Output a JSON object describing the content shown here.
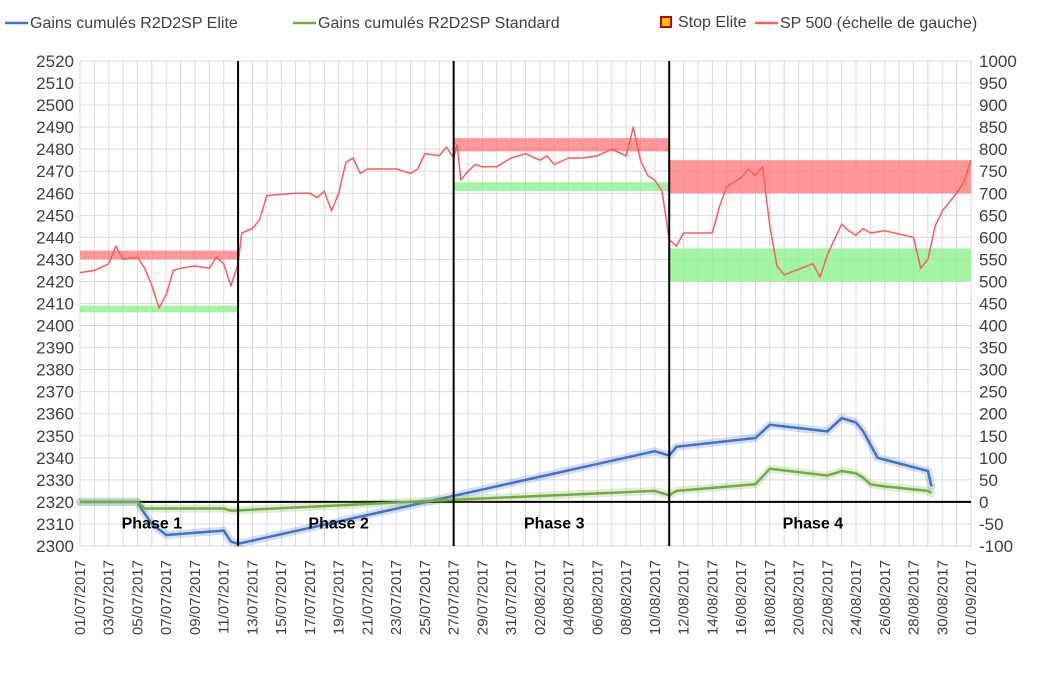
{
  "chart_data": {
    "type": "line",
    "x_axis": {
      "min_date": "01/07/2017",
      "max_date": "01/09/2017",
      "tick_labels": [
        "01/07/2017",
        "03/07/2017",
        "05/07/2017",
        "07/07/2017",
        "09/07/2017",
        "11/07/2017",
        "13/07/2017",
        "15/07/2017",
        "17/07/2017",
        "19/07/2017",
        "21/07/2017",
        "23/07/2017",
        "25/07/2017",
        "27/07/2017",
        "29/07/2017",
        "31/07/2017",
        "02/08/2017",
        "04/08/2017",
        "06/08/2017",
        "08/08/2017",
        "10/08/2017",
        "12/08/2017",
        "14/08/2017",
        "16/08/2017",
        "18/08/2017",
        "20/08/2017",
        "22/08/2017",
        "24/08/2017",
        "26/08/2017",
        "28/08/2017",
        "30/08/2017",
        "01/09/2017"
      ]
    },
    "y_left": {
      "min": 2300,
      "max": 2520,
      "step": 10,
      "tick_labels": [
        "2300",
        "2310",
        "2320",
        "2330",
        "2340",
        "2350",
        "2360",
        "2370",
        "2380",
        "2390",
        "2400",
        "2410",
        "2420",
        "2430",
        "2440",
        "2450",
        "2460",
        "2470",
        "2480",
        "2490",
        "2500",
        "2510",
        "2520"
      ]
    },
    "y_right": {
      "min": -100,
      "max": 1000,
      "step": 50,
      "tick_labels": [
        "-100",
        "-50",
        "0",
        "50",
        "100",
        "150",
        "200",
        "250",
        "300",
        "350",
        "400",
        "450",
        "500",
        "550",
        "600",
        "650",
        "700",
        "750",
        "800",
        "850",
        "900",
        "950",
        "1000"
      ]
    },
    "grid": true,
    "legend_position": "top",
    "legend": [
      {
        "label": "Gains cumulés R2D2SP Elite",
        "color": "#4472c4",
        "kind": "line"
      },
      {
        "label": "Gains cumulés R2D2SP Standard",
        "color": "#70ad47",
        "kind": "line"
      },
      {
        "label": "Stop Elite",
        "color": "#ffc000",
        "kind": "marker"
      },
      {
        "label": "SP 500 (échelle de gauche)",
        "color": "#ff5b5b",
        "kind": "line"
      }
    ],
    "phase_dividers": [
      "12/07/2017",
      "27/07/2017",
      "11/08/2017"
    ],
    "phases": [
      {
        "label": "Phase 1",
        "center_date": "06/07/2017"
      },
      {
        "label": "Phase 2",
        "center_date": "19/07/2017"
      },
      {
        "label": "Phase 3",
        "center_date": "03/08/2017"
      },
      {
        "label": "Phase 4",
        "center_date": "21/08/2017"
      }
    ],
    "bands": [
      {
        "from_date": "01/07/2017",
        "to_date": "12/07/2017",
        "y_low": 2430,
        "y_high": 2434,
        "color": "red"
      },
      {
        "from_date": "01/07/2017",
        "to_date": "12/07/2017",
        "y_low": 2406,
        "y_high": 2409,
        "color": "green"
      },
      {
        "from_date": "27/07/2017",
        "to_date": "11/08/2017",
        "y_low": 2479,
        "y_high": 2485,
        "color": "red"
      },
      {
        "from_date": "27/07/2017",
        "to_date": "11/08/2017",
        "y_low": 2461,
        "y_high": 2465,
        "color": "green"
      },
      {
        "from_date": "11/08/2017",
        "to_date": "01/09/2017",
        "y_low": 2460,
        "y_high": 2475,
        "color": "red"
      },
      {
        "from_date": "11/08/2017",
        "to_date": "01/09/2017",
        "y_low": 2420,
        "y_high": 2435,
        "color": "green"
      }
    ],
    "series": [
      {
        "name": "SP 500 (échelle de gauche)",
        "axis": "left",
        "color": "#ff5b5b",
        "points": [
          [
            "01/07/2017",
            2424
          ],
          [
            "02/07/2017",
            2425
          ],
          [
            "03/07/2017",
            2428
          ],
          [
            "03/07/2017 12:00",
            2436
          ],
          [
            "04/07/2017",
            2430
          ],
          [
            "05/07/2017",
            2431
          ],
          [
            "05/07/2017 12:00",
            2426
          ],
          [
            "06/07/2017",
            2418
          ],
          [
            "06/07/2017 12:00",
            2408
          ],
          [
            "07/07/2017",
            2414
          ],
          [
            "07/07/2017 12:00",
            2425
          ],
          [
            "08/07/2017",
            2426
          ],
          [
            "09/07/2017",
            2427
          ],
          [
            "10/07/2017",
            2426
          ],
          [
            "10/07/2017 12:00",
            2431
          ],
          [
            "11/07/2017",
            2428
          ],
          [
            "11/07/2017 12:00",
            2418
          ],
          [
            "12/07/2017",
            2428
          ],
          [
            "12/07/2017 06:00",
            2442
          ],
          [
            "13/07/2017",
            2444
          ],
          [
            "13/07/2017 12:00",
            2448
          ],
          [
            "14/07/2017",
            2459
          ],
          [
            "16/07/2017",
            2460
          ],
          [
            "17/07/2017",
            2460
          ],
          [
            "17/07/2017 12:00",
            2458
          ],
          [
            "18/07/2017",
            2461
          ],
          [
            "18/07/2017 12:00",
            2452
          ],
          [
            "19/07/2017",
            2460
          ],
          [
            "19/07/2017 12:00",
            2474
          ],
          [
            "20/07/2017",
            2476
          ],
          [
            "20/07/2017 12:00",
            2469
          ],
          [
            "21/07/2017",
            2471
          ],
          [
            "22/07/2017",
            2471
          ],
          [
            "23/07/2017",
            2471
          ],
          [
            "24/07/2017",
            2469
          ],
          [
            "24/07/2017 12:00",
            2471
          ],
          [
            "25/07/2017",
            2478
          ],
          [
            "26/07/2017",
            2477
          ],
          [
            "26/07/2017 12:00",
            2481
          ],
          [
            "27/07/2017",
            2476
          ],
          [
            "27/07/2017 06:00",
            2482
          ],
          [
            "27/07/2017 12:00",
            2466
          ],
          [
            "28/07/2017",
            2470
          ],
          [
            "28/07/2017 12:00",
            2473
          ],
          [
            "29/07/2017",
            2472
          ],
          [
            "30/07/2017",
            2472
          ],
          [
            "31/07/2017",
            2476
          ],
          [
            "01/08/2017",
            2478
          ],
          [
            "02/08/2017",
            2475
          ],
          [
            "02/08/2017 12:00",
            2477
          ],
          [
            "03/08/2017",
            2473
          ],
          [
            "04/08/2017",
            2476
          ],
          [
            "05/08/2017",
            2476
          ],
          [
            "06/08/2017",
            2477
          ],
          [
            "07/08/2017",
            2480
          ],
          [
            "08/08/2017",
            2477
          ],
          [
            "08/08/2017 12:00",
            2490
          ],
          [
            "09/08/2017",
            2475
          ],
          [
            "09/08/2017 12:00",
            2468
          ],
          [
            "10/08/2017",
            2466
          ],
          [
            "10/08/2017 12:00",
            2461
          ],
          [
            "11/08/2017",
            2439
          ],
          [
            "11/08/2017 12:00",
            2436
          ],
          [
            "12/08/2017",
            2442
          ],
          [
            "14/08/2017",
            2442
          ],
          [
            "14/08/2017 12:00",
            2454
          ],
          [
            "15/08/2017",
            2463
          ],
          [
            "16/08/2017",
            2467
          ],
          [
            "16/08/2017 12:00",
            2471
          ],
          [
            "17/08/2017",
            2468
          ],
          [
            "17/08/2017 12:00",
            2472
          ],
          [
            "18/08/2017",
            2445
          ],
          [
            "18/08/2017 12:00",
            2427
          ],
          [
            "19/08/2017",
            2423
          ],
          [
            "21/08/2017",
            2428
          ],
          [
            "21/08/2017 12:00",
            2422
          ],
          [
            "22/08/2017",
            2432
          ],
          [
            "23/08/2017",
            2446
          ],
          [
            "23/08/2017 12:00",
            2443
          ],
          [
            "24/08/2017",
            2441
          ],
          [
            "24/08/2017 12:00",
            2444
          ],
          [
            "25/08/2017",
            2442
          ],
          [
            "26/08/2017",
            2443
          ],
          [
            "28/08/2017",
            2440
          ],
          [
            "28/08/2017 12:00",
            2426
          ],
          [
            "29/08/2017",
            2430
          ],
          [
            "29/08/2017 12:00",
            2445
          ],
          [
            "30/08/2017",
            2452
          ],
          [
            "31/08/2017",
            2460
          ],
          [
            "31/08/2017 12:00",
            2465
          ],
          [
            "01/09/2017",
            2475
          ]
        ]
      },
      {
        "name": "Gains cumulés R2D2SP Elite",
        "axis": "right",
        "color": "#4472c4",
        "points": [
          [
            "01/07/2017",
            0
          ],
          [
            "05/07/2017",
            0
          ],
          [
            "05/07/2017 06:00",
            -15
          ],
          [
            "06/07/2017",
            -50
          ],
          [
            "07/07/2017",
            -75
          ],
          [
            "11/07/2017",
            -65
          ],
          [
            "11/07/2017 12:00",
            -90
          ],
          [
            "12/07/2017",
            -95
          ],
          [
            "10/08/2017",
            115
          ],
          [
            "11/08/2017",
            105
          ],
          [
            "11/08/2017 12:00",
            125
          ],
          [
            "17/08/2017",
            145
          ],
          [
            "18/08/2017",
            175
          ],
          [
            "22/08/2017",
            160
          ],
          [
            "23/08/2017",
            190
          ],
          [
            "24/08/2017",
            180
          ],
          [
            "24/08/2017 12:00",
            160
          ],
          [
            "25/08/2017",
            130
          ],
          [
            "25/08/2017 12:00",
            100
          ],
          [
            "29/08/2017",
            70
          ],
          [
            "29/08/2017 06:00",
            35
          ]
        ]
      },
      {
        "name": "Gains cumulés R2D2SP Standard",
        "axis": "right",
        "color": "#70ad47",
        "points": [
          [
            "01/07/2017",
            0
          ],
          [
            "05/07/2017",
            0
          ],
          [
            "05/07/2017 12:00",
            -15
          ],
          [
            "11/07/2017",
            -15
          ],
          [
            "11/07/2017 12:00",
            -20
          ],
          [
            "27/07/2017",
            5
          ],
          [
            "10/08/2017",
            25
          ],
          [
            "11/08/2017",
            15
          ],
          [
            "11/08/2017 12:00",
            25
          ],
          [
            "17/08/2017",
            40
          ],
          [
            "18/08/2017",
            75
          ],
          [
            "22/08/2017",
            60
          ],
          [
            "22/08/2017 12:00",
            65
          ],
          [
            "23/08/2017",
            70
          ],
          [
            "24/08/2017",
            65
          ],
          [
            "24/08/2017 12:00",
            55
          ],
          [
            "25/08/2017",
            40
          ],
          [
            "26/08/2017",
            35
          ],
          [
            "29/08/2017",
            25
          ],
          [
            "29/08/2017 06:00",
            20
          ]
        ]
      }
    ]
  }
}
